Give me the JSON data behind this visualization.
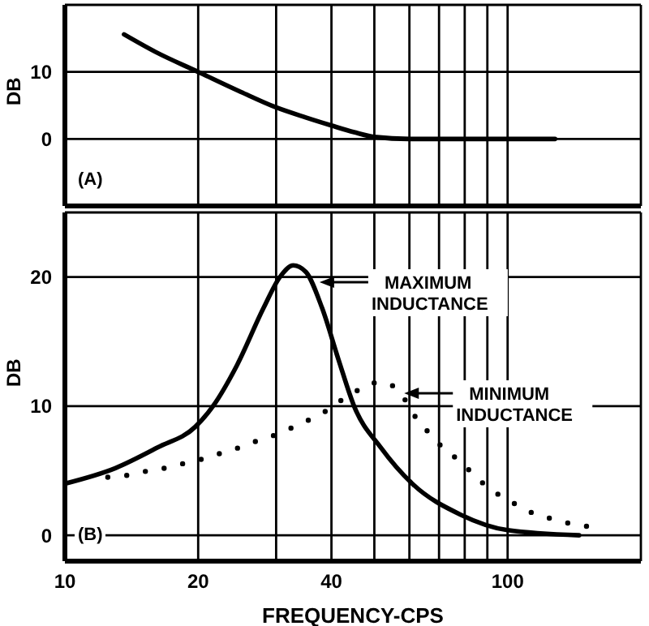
{
  "chart_data": [
    {
      "type": "line",
      "ylabel": "DB",
      "log": "x",
      "grid": true,
      "tick_labels": "y",
      "xlim": [
        10,
        200
      ],
      "xticks": [
        10,
        20,
        {
          "value": 30,
          "label": null
        },
        40,
        {
          "value": 50,
          "label": null
        },
        {
          "value": 60,
          "label": null
        },
        {
          "value": 70,
          "label": null
        },
        {
          "value": 80,
          "label": null
        },
        {
          "value": 90,
          "label": null
        },
        100
      ],
      "ylim": [
        -10,
        20
      ],
      "yticks": [
        0,
        10
      ],
      "annotations": [
        "(A)"
      ],
      "series": [
        {
          "color": "#000000",
          "line_style": "solid",
          "x": [
            13.6,
            16,
            20,
            25,
            30,
            35,
            40,
            45,
            50,
            60,
            80,
            100,
            128
          ],
          "values": [
            15.6,
            13,
            10,
            7,
            4.7,
            3.2,
            2,
            1,
            0.3,
            0,
            0,
            0,
            0
          ]
        }
      ]
    },
    {
      "type": "line",
      "xlabel": "FREQUENCY-CPS",
      "ylabel": "DB",
      "log": "x",
      "grid": true,
      "xlim": [
        10,
        200
      ],
      "xticks": [
        10,
        20,
        {
          "value": 30,
          "label": null
        },
        40,
        {
          "value": 50,
          "label": null
        },
        {
          "value": 60,
          "label": null
        },
        {
          "value": 70,
          "label": null
        },
        {
          "value": 80,
          "label": null
        },
        {
          "value": 90,
          "label": null
        },
        100
      ],
      "ylim": [
        -2,
        25
      ],
      "yticks": [
        0,
        10,
        20
      ],
      "annotations": [
        "(B)",
        {
          "text": "MAXIMUM INDUCTANCE",
          "x": 37.6,
          "y": 19.6
        },
        {
          "text": "MINIMUM INDUCTANCE",
          "x": 58.4,
          "y": 11.0
        }
      ],
      "series": [
        {
          "color": "#000000",
          "line_style": "solid",
          "x": [
            10,
            13,
            16.2,
            19.7,
            21.6,
            24.5,
            28.1,
            30.6,
            32.8,
            35,
            38.1,
            41.5,
            45,
            51.7,
            60.9,
            78.3,
            100,
            145
          ],
          "values": [
            4,
            5.2,
            6.8,
            8.4,
            10,
            13.2,
            17.6,
            20,
            20.9,
            20.4,
            17.6,
            13.6,
            10,
            6.8,
            4,
            1.6,
            0.4,
            0
          ]
        },
        {
          "color": "#000000",
          "line_style": "dotted",
          "x": [
            12.5,
            13.6,
            14.9,
            16.3,
            17.7,
            19.3,
            20.9,
            22.7,
            24.8,
            27.1,
            30,
            32.9,
            35.9,
            39.2,
            42.3,
            46.3,
            49.6,
            53.1,
            56.9,
            62.7,
            67,
            71.8,
            78.3,
            84.9,
            92.1,
            101.9,
            112.6,
            125,
            138.8,
            150.8
          ],
          "values": [
            4.5,
            4.6,
            4.9,
            5.1,
            5.4,
            5.7,
            6,
            6.4,
            6.8,
            7.3,
            7.8,
            8.4,
            9,
            9.7,
            10.5,
            11.3,
            11.8,
            11.8,
            11.1,
            8.9,
            7.8,
            6.7,
            5.7,
            4.5,
            3.5,
            2.6,
            1.8,
            1.3,
            0.9,
            0.7
          ]
        }
      ]
    }
  ]
}
